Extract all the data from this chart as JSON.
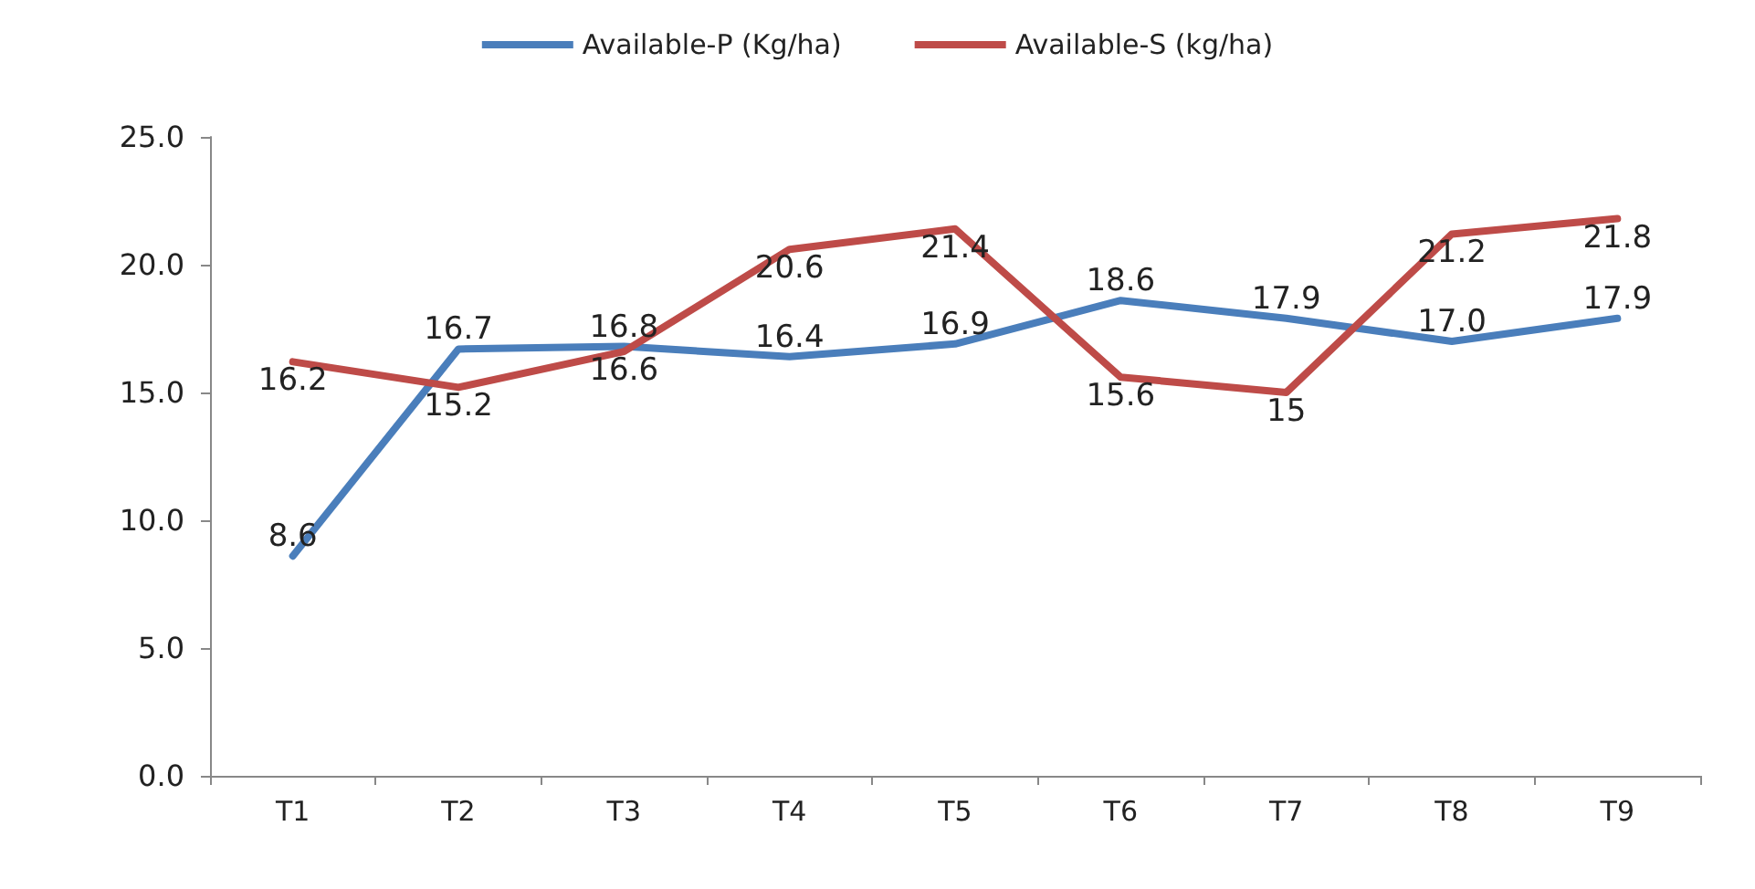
{
  "chart_data": {
    "type": "line",
    "categories": [
      "T1",
      "T2",
      "T3",
      "T4",
      "T5",
      "T6",
      "T7",
      "T8",
      "T9"
    ],
    "series": [
      {
        "name": "Available-P (Kg/ha)",
        "color": "#4a7ebb",
        "values": [
          8.6,
          16.7,
          16.8,
          16.4,
          16.9,
          18.6,
          17.9,
          17.0,
          17.9
        ],
        "value_labels": [
          "8.6",
          "16.7",
          "16.8",
          "16.4",
          "16.9",
          "18.6",
          "17.9",
          "17.0",
          "17.9"
        ]
      },
      {
        "name": "Available-S (kg/ha)",
        "color": "#be4b48",
        "values": [
          16.2,
          15.2,
          16.6,
          20.6,
          21.4,
          15.6,
          15,
          21.2,
          21.8
        ],
        "value_labels": [
          "16.2",
          "15.2",
          "16.6",
          "20.6",
          "21.4",
          "15.6",
          "15",
          "21.2",
          "21.8"
        ]
      }
    ],
    "ylim": [
      0,
      25
    ],
    "yticks": [
      {
        "value": 0,
        "label": "0.0"
      },
      {
        "value": 5,
        "label": "5.0"
      },
      {
        "value": 10,
        "label": "10.0"
      },
      {
        "value": 15,
        "label": "15.0"
      },
      {
        "value": 20,
        "label": "20.0"
      },
      {
        "value": 25,
        "label": "25.0"
      }
    ],
    "grid": false,
    "legend": "top",
    "marker": "none",
    "line_style": "solid"
  }
}
